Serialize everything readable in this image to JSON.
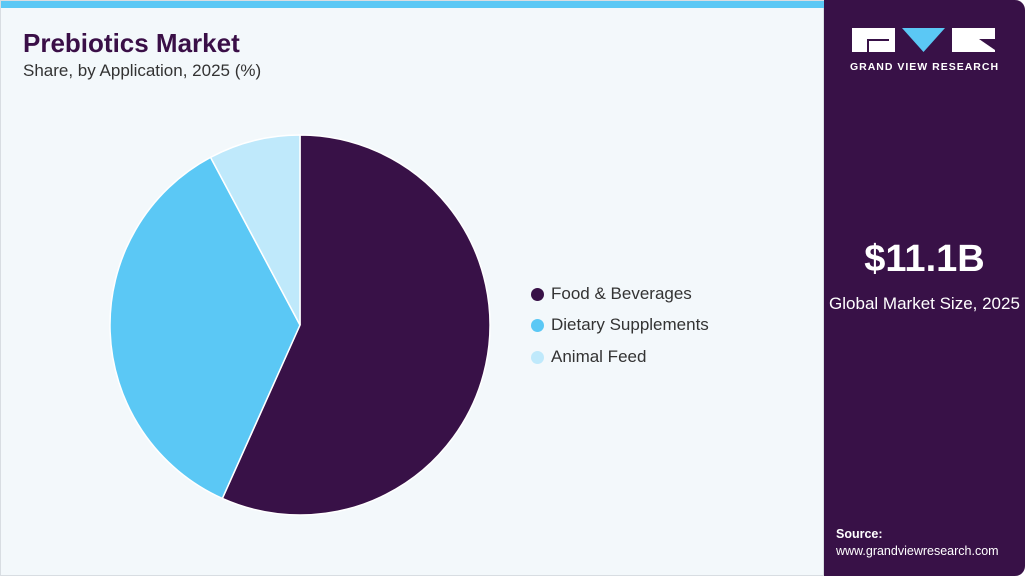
{
  "header": {
    "title": "Prebiotics Market",
    "subtitle": "Share, by Application, 2025 (%)"
  },
  "sidebar": {
    "logo_text": "GRAND VIEW RESEARCH",
    "market_size": "$11.1B",
    "market_size_label": "Global Market Size, 2025",
    "source_label": "Source:",
    "source_url": "www.grandviewresearch.com"
  },
  "colors": {
    "accent": "#5bc8f5",
    "brand": "#381147"
  },
  "chart_data": {
    "type": "pie",
    "title": "Prebiotics Market",
    "subtitle": "Share, by Application, 2025 (%)",
    "legend_position": "right",
    "categories": [
      "Food & Beverages",
      "Dietary Supplements",
      "Animal Feed"
    ],
    "values": [
      56.7,
      35.5,
      7.8
    ],
    "colors": [
      "#381147",
      "#5bc8f5",
      "#bfe9fb"
    ]
  }
}
